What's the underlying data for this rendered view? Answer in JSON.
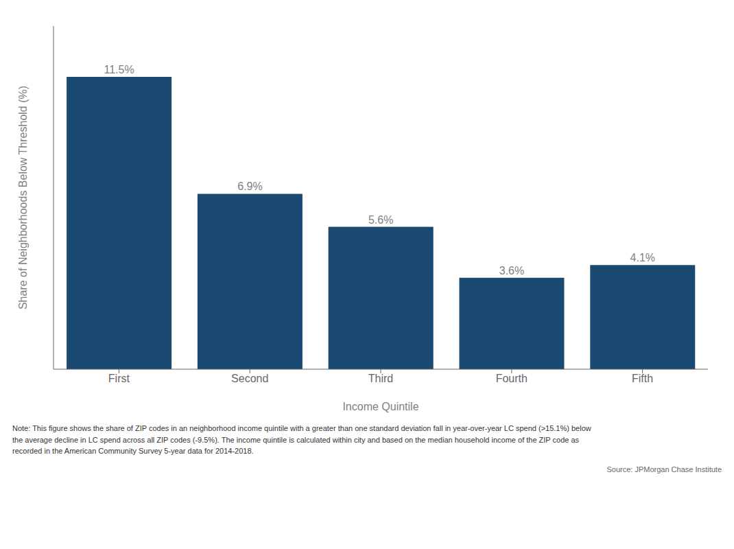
{
  "chart_data": {
    "type": "bar",
    "categories": [
      "First",
      "Second",
      "Third",
      "Fourth",
      "Fifth"
    ],
    "values": [
      11.5,
      6.9,
      5.6,
      3.6,
      4.1
    ],
    "value_labels": [
      "11.5%",
      "6.9%",
      "5.6%",
      "3.6%",
      "4.1%"
    ],
    "data_labels": true,
    "color": "#1a4a72",
    "xlabel": "Income Quintile",
    "ylabel": "Share of Neighborhoods Below Threshold (%)",
    "ylim": [
      0,
      13.5
    ],
    "tick_labels": "x",
    "grid": false,
    "annotations": [
      "Note: This figure shows the share of ZIP codes in an neighborhood income quintile with a greater than one standard deviation fall in year-over-year LC spend (>15.1%) below\nthe average decline in LC spend across all ZIP codes (-9.5%). The income quintile is calculated within city and based on the median household income of the ZIP code as\nrecorded in the American Community Survey 5-year data for 2014-2018.",
      "Source: JPMorgan Chase Institute"
    ]
  }
}
